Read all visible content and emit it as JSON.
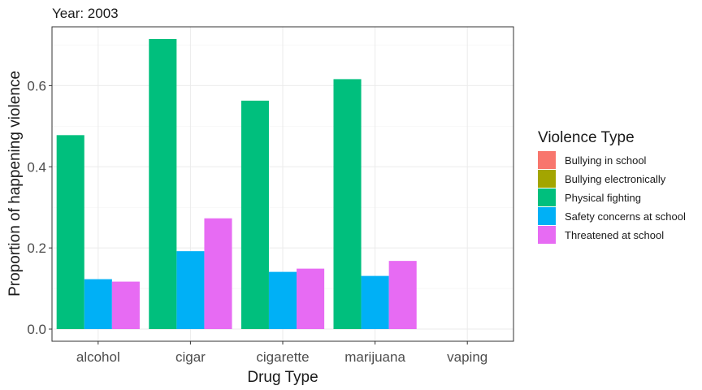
{
  "chart_data": {
    "type": "bar",
    "title": "Year: 2003",
    "xlabel": "Drug Type",
    "ylabel": "Proportion of happening violence",
    "categories": [
      "alcohol",
      "cigar",
      "cigarette",
      "marijuana",
      "vaping"
    ],
    "ylim": [
      -0.03,
      0.745
    ],
    "yticks": [
      0.0,
      0.2,
      0.4,
      0.6
    ],
    "ytick_labels": [
      "0.0",
      "0.2",
      "0.4",
      "0.6"
    ],
    "grid": true,
    "legend": {
      "title": "Violence Type",
      "position": "right",
      "entries": [
        "Bullying in school",
        "Bullying electronically",
        "Physical fighting",
        "Safety concerns at school",
        "Threatened at school"
      ]
    },
    "series": [
      {
        "name": "Bullying in school",
        "color": "#F8766D",
        "values": [
          null,
          null,
          null,
          null,
          null
        ]
      },
      {
        "name": "Bullying electronically",
        "color": "#A3A500",
        "values": [
          null,
          null,
          null,
          null,
          null
        ]
      },
      {
        "name": "Physical fighting",
        "color": "#00BF7D",
        "values": [
          0.478,
          0.715,
          0.563,
          0.616,
          null
        ]
      },
      {
        "name": "Safety concerns at school",
        "color": "#00B0F6",
        "values": [
          0.123,
          0.192,
          0.141,
          0.131,
          null
        ]
      },
      {
        "name": "Threatened at school",
        "color": "#E76BF3",
        "values": [
          0.117,
          0.273,
          0.149,
          0.168,
          null
        ]
      }
    ],
    "present_series": [
      "Physical fighting",
      "Safety concerns at school",
      "Threatened at school"
    ]
  }
}
